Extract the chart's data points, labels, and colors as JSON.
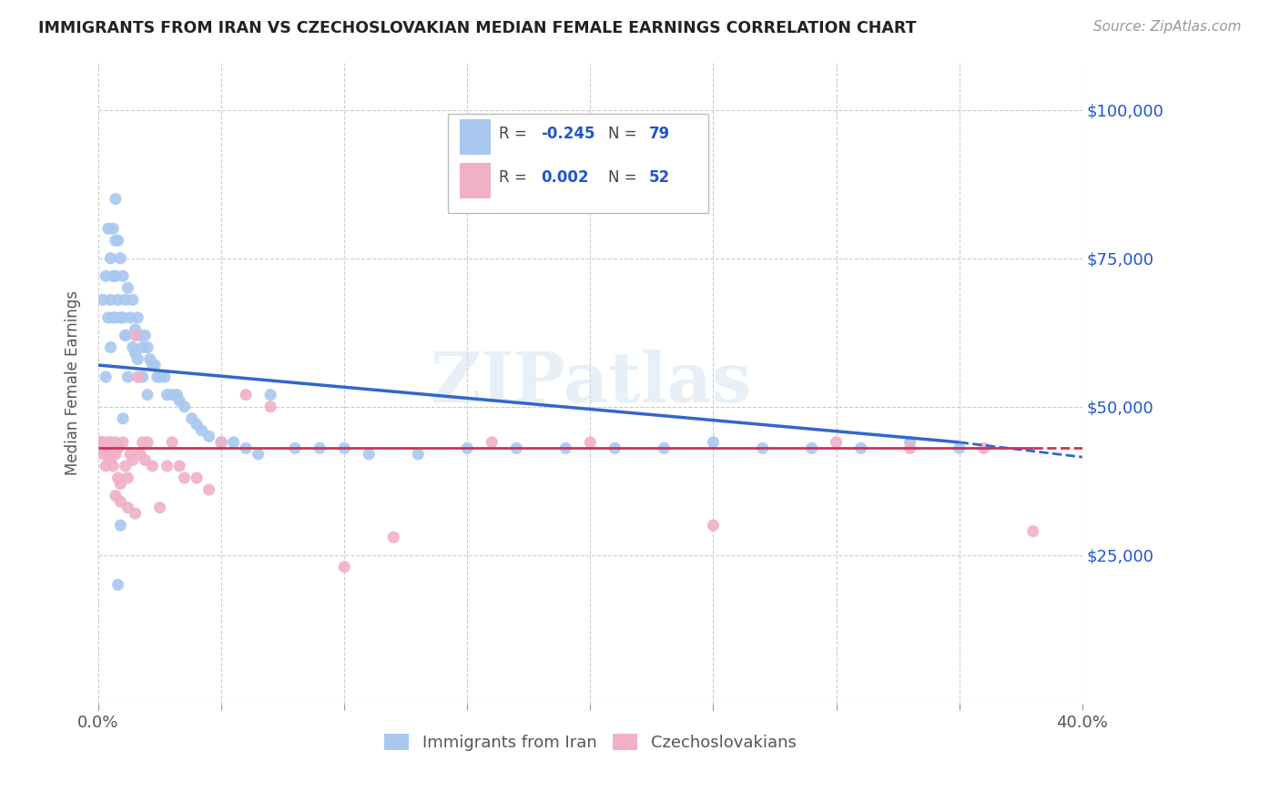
{
  "title": "IMMIGRANTS FROM IRAN VS CZECHOSLOVAKIAN MEDIAN FEMALE EARNINGS CORRELATION CHART",
  "source": "Source: ZipAtlas.com",
  "ylabel": "Median Female Earnings",
  "y_ticks": [
    0,
    25000,
    50000,
    75000,
    100000
  ],
  "y_tick_labels": [
    "",
    "$25,000",
    "$50,000",
    "$75,000",
    "$100,000"
  ],
  "x_min": 0.0,
  "x_max": 0.4,
  "y_min": 0,
  "y_max": 108000,
  "watermark": "ZIPatlas",
  "color_iran": "#a8c8f0",
  "color_czech": "#f0b0c8",
  "trendline_iran_color": "#3366cc",
  "trendline_czech_color": "#cc3355",
  "background_color": "#ffffff",
  "iran_x": [
    0.001,
    0.002,
    0.003,
    0.003,
    0.004,
    0.004,
    0.005,
    0.005,
    0.005,
    0.006,
    0.006,
    0.006,
    0.007,
    0.007,
    0.007,
    0.007,
    0.008,
    0.008,
    0.009,
    0.009,
    0.01,
    0.01,
    0.011,
    0.011,
    0.012,
    0.013,
    0.014,
    0.015,
    0.015,
    0.016,
    0.017,
    0.018,
    0.019,
    0.02,
    0.021,
    0.022,
    0.023,
    0.024,
    0.025,
    0.027,
    0.028,
    0.03,
    0.032,
    0.033,
    0.035,
    0.038,
    0.04,
    0.042,
    0.045,
    0.05,
    0.055,
    0.06,
    0.065,
    0.07,
    0.08,
    0.09,
    0.1,
    0.11,
    0.13,
    0.15,
    0.17,
    0.19,
    0.21,
    0.23,
    0.25,
    0.27,
    0.29,
    0.31,
    0.33,
    0.35,
    0.008,
    0.009,
    0.01,
    0.011,
    0.012,
    0.014,
    0.016,
    0.018,
    0.02
  ],
  "iran_y": [
    44000,
    68000,
    72000,
    55000,
    80000,
    65000,
    75000,
    68000,
    60000,
    80000,
    72000,
    65000,
    85000,
    78000,
    72000,
    65000,
    78000,
    68000,
    75000,
    65000,
    72000,
    65000,
    68000,
    62000,
    70000,
    65000,
    68000,
    63000,
    59000,
    65000,
    62000,
    60000,
    62000,
    60000,
    58000,
    57000,
    57000,
    55000,
    55000,
    55000,
    52000,
    52000,
    52000,
    51000,
    50000,
    48000,
    47000,
    46000,
    45000,
    44000,
    44000,
    43000,
    42000,
    52000,
    43000,
    43000,
    43000,
    42000,
    42000,
    43000,
    43000,
    43000,
    43000,
    43000,
    44000,
    43000,
    43000,
    43000,
    44000,
    43000,
    20000,
    30000,
    48000,
    62000,
    55000,
    60000,
    58000,
    55000,
    52000
  ],
  "czech_x": [
    0.001,
    0.001,
    0.002,
    0.002,
    0.003,
    0.003,
    0.004,
    0.004,
    0.005,
    0.005,
    0.006,
    0.006,
    0.007,
    0.007,
    0.008,
    0.008,
    0.009,
    0.01,
    0.011,
    0.012,
    0.013,
    0.014,
    0.015,
    0.016,
    0.017,
    0.018,
    0.019,
    0.02,
    0.022,
    0.025,
    0.028,
    0.03,
    0.033,
    0.035,
    0.04,
    0.045,
    0.05,
    0.06,
    0.07,
    0.1,
    0.12,
    0.16,
    0.2,
    0.25,
    0.3,
    0.33,
    0.36,
    0.38,
    0.007,
    0.009,
    0.012,
    0.015
  ],
  "czech_y": [
    44000,
    43000,
    44000,
    42000,
    43000,
    40000,
    44000,
    42000,
    44000,
    41000,
    43000,
    40000,
    44000,
    42000,
    43000,
    38000,
    37000,
    44000,
    40000,
    38000,
    42000,
    41000,
    62000,
    55000,
    42000,
    44000,
    41000,
    44000,
    40000,
    33000,
    40000,
    44000,
    40000,
    38000,
    38000,
    36000,
    44000,
    52000,
    50000,
    23000,
    28000,
    44000,
    44000,
    30000,
    44000,
    43000,
    43000,
    29000,
    35000,
    34000,
    33000,
    32000
  ],
  "iran_trendline_x0": 0.0,
  "iran_trendline_x1": 0.35,
  "iran_trendline_y0": 57000,
  "iran_trendline_y1": 44000,
  "iran_trendline_xdash0": 0.35,
  "iran_trendline_xdash1": 0.4,
  "iran_trendline_ydash0": 44000,
  "iran_trendline_ydash1": 41500,
  "czech_trendline_x0": 0.0,
  "czech_trendline_x1": 0.38,
  "czech_trendline_y0": 43000,
  "czech_trendline_y1": 43000,
  "czech_trendline_xdash0": 0.38,
  "czech_trendline_xdash1": 0.4,
  "czech_trendline_ydash0": 43000,
  "czech_trendline_ydash1": 43000
}
